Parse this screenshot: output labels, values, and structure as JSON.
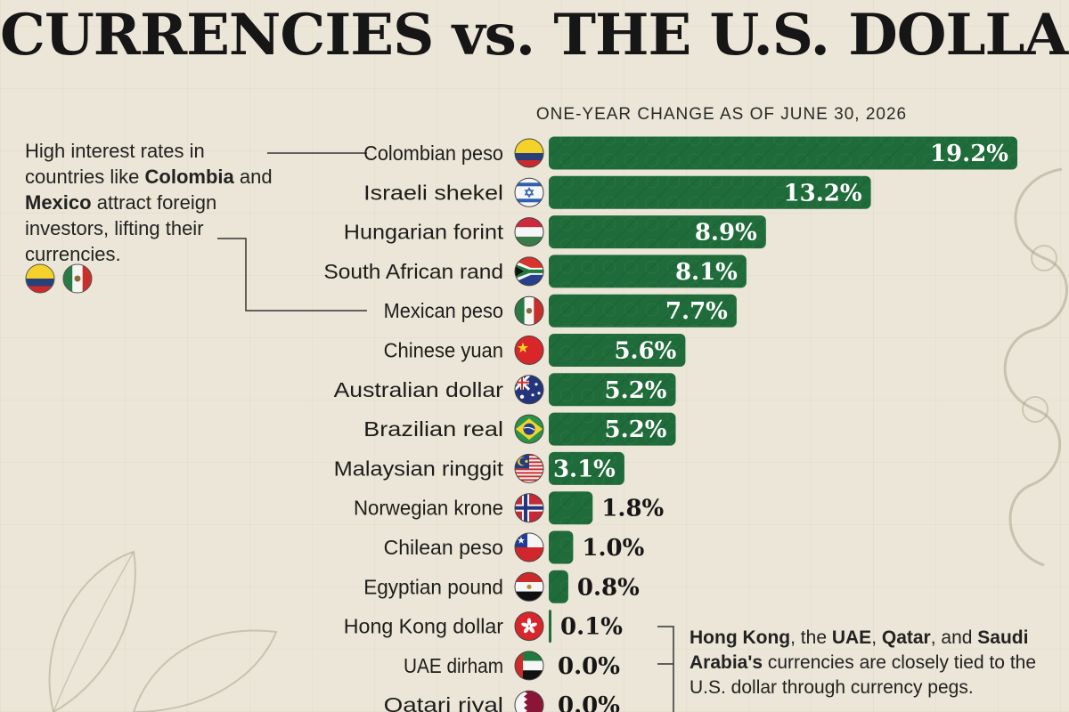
{
  "title": "CURRENCIES vs. THE U.S. DOLLAR",
  "chart_data": {
    "type": "bar",
    "orientation": "horizontal",
    "title": "CURRENCIES vs. THE U.S. DOLLAR",
    "subtitle": "ONE-YEAR CHANGE AS OF JUNE 30, 2026",
    "unit": "%",
    "categories": [
      "Colombian peso",
      "Israeli shekel",
      "Hungarian forint",
      "South African rand",
      "Mexican peso",
      "Chinese yuan",
      "Australian dollar",
      "Brazilian real",
      "Malaysian ringgit",
      "Norwegian krone",
      "Chilean peso",
      "Egyptian pound",
      "Hong Kong dollar",
      "UAE dirham",
      "Qatari riyal"
    ],
    "values": [
      19.2,
      13.2,
      8.9,
      8.1,
      7.7,
      5.6,
      5.2,
      5.2,
      3.1,
      1.8,
      1.0,
      0.8,
      0.1,
      0.0,
      0.0
    ],
    "labels": [
      "19.2%",
      "13.2%",
      "8.9%",
      "8.1%",
      "7.7%",
      "5.6%",
      "5.2%",
      "5.2%",
      "3.1%",
      "1.8%",
      "1.0%",
      "0.8%",
      "0.1%",
      "0.0%",
      "0.0%"
    ],
    "flags": [
      "colombia-flag-icon",
      "israel-flag-icon",
      "hungary-flag-icon",
      "south-africa-flag-icon",
      "mexico-flag-icon",
      "china-flag-icon",
      "australia-flag-icon",
      "brazil-flag-icon",
      "malaysia-flag-icon",
      "norway-flag-icon",
      "chile-flag-icon",
      "egypt-flag-icon",
      "hong-kong-flag-icon",
      "uae-flag-icon",
      "qatar-flag-icon"
    ],
    "bar_color": "#1f6b3a",
    "grid": false,
    "legend": "none"
  },
  "annotations": {
    "left": {
      "p1": "High interest rates in countries like ",
      "b1": "Colombia",
      "p2": " and ",
      "b2": "Mexico",
      "p3": " attract foreign investors, lifting their currencies."
    },
    "right": {
      "b1": "Hong Kong",
      "p1": ", the ",
      "b2": "UAE",
      "p2": ", ",
      "b3": "Qatar",
      "p3": ", and ",
      "b4": "Saudi Arabia's",
      "p4": " currencies are closely tied to the U.S. dollar through currency pegs."
    }
  },
  "colors": {
    "background": "#ebe6d7",
    "bar": "#1f6b3a",
    "bar_dark": "#174f2b",
    "text": "#1d1d1b"
  }
}
